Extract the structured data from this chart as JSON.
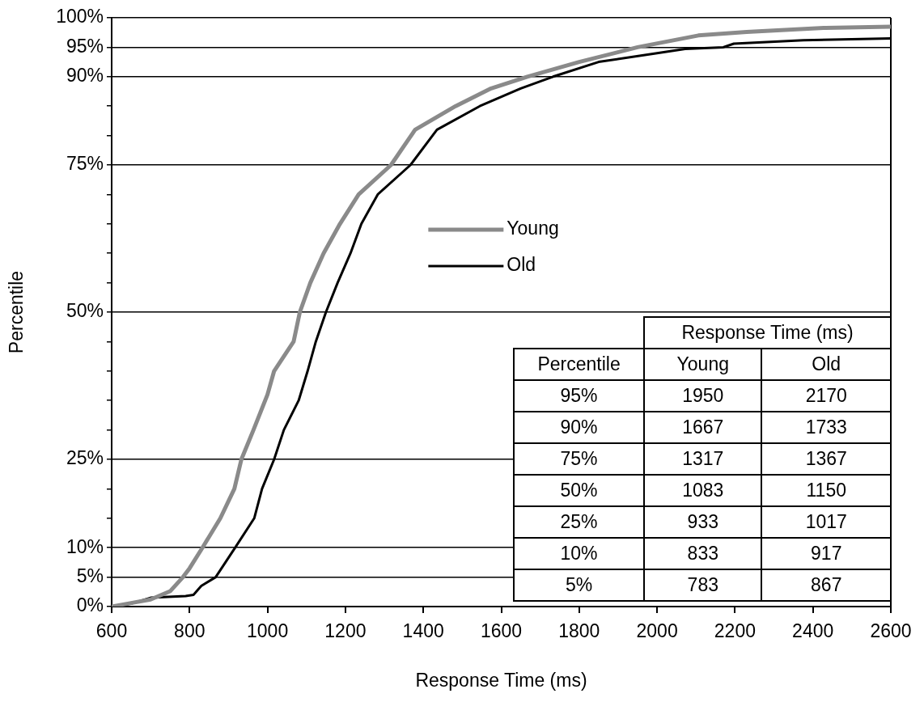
{
  "chart_data": [
    {
      "type": "line",
      "xlabel": "Response Time (ms)",
      "ylabel": "Percentile",
      "xlim": [
        600,
        2600
      ],
      "xticks": [
        600,
        800,
        1000,
        1200,
        1400,
        1600,
        1800,
        2000,
        2200,
        2400,
        2600
      ],
      "ylim": [
        0,
        100
      ],
      "yticks": [
        {
          "value": 0,
          "label": "0%"
        },
        {
          "value": 5,
          "label": "5%"
        },
        {
          "value": 10,
          "label": "10%"
        },
        {
          "value": 15,
          "label": null
        },
        {
          "value": 20,
          "label": null
        },
        {
          "value": 25,
          "label": "25%"
        },
        {
          "value": 30,
          "label": null
        },
        {
          "value": 35,
          "label": null
        },
        {
          "value": 40,
          "label": null
        },
        {
          "value": 45,
          "label": null
        },
        {
          "value": 50,
          "label": "50%"
        },
        {
          "value": 55,
          "label": null
        },
        {
          "value": 60,
          "label": null
        },
        {
          "value": 65,
          "label": null
        },
        {
          "value": 70,
          "label": null
        },
        {
          "value": 75,
          "label": "75%"
        },
        {
          "value": 80,
          "label": null
        },
        {
          "value": 85,
          "label": null
        },
        {
          "value": 90,
          "label": "90%"
        },
        {
          "value": 95,
          "label": "95%"
        },
        {
          "value": 100,
          "label": "100%"
        }
      ],
      "grid": "y",
      "legend": "center",
      "marker": "none",
      "line_style": "solid",
      "series": [
        {
          "name": "Young",
          "color": "#8a8a8a",
          "x": [
            600,
            650,
            700,
            750,
            783,
            800,
            833,
            879,
            915,
            933,
            964,
            1000,
            1017,
            1067,
            1083,
            1110,
            1144,
            1186,
            1234,
            1317,
            1379,
            1483,
            1574,
            1667,
            1800,
            1950,
            2106,
            2230,
            2432,
            2600
          ],
          "values": [
            0,
            0.6,
            1.2,
            2.6,
            5,
            6.5,
            10,
            15,
            20,
            25,
            30,
            36,
            40,
            45,
            50,
            55,
            60,
            65,
            70,
            75,
            81,
            85,
            88,
            90,
            92.5,
            95,
            97,
            97.6,
            98.3,
            98.5
          ]
        },
        {
          "name": "Old",
          "color": "#000000",
          "x": [
            600,
            650,
            700,
            790,
            810,
            830,
            867,
            917,
            966,
            986,
            1017,
            1042,
            1080,
            1103,
            1124,
            1150,
            1180,
            1213,
            1241,
            1283,
            1367,
            1435,
            1545,
            1650,
            1733,
            1850,
            2000,
            2072,
            2170,
            2197,
            2376,
            2600
          ],
          "values": [
            0,
            0.5,
            1.5,
            1.8,
            2,
            3.5,
            5,
            10,
            15,
            20,
            25,
            30,
            35,
            40,
            45,
            50,
            55,
            60,
            65,
            70,
            75,
            81,
            85,
            88,
            90,
            92.5,
            94,
            94.7,
            95,
            95.6,
            96.2,
            96.5
          ]
        }
      ]
    },
    {
      "type": "other",
      "title": "Response Time (ms)",
      "ylabel": "Percentile",
      "categories": [
        "95%",
        "90%",
        "75%",
        "50%",
        "25%",
        "10%",
        "5%"
      ],
      "data_labels": true,
      "series": [
        {
          "name": "Young",
          "values": [
            1950,
            1667,
            1317,
            1083,
            933,
            833,
            783
          ]
        },
        {
          "name": "Old",
          "values": [
            2170,
            1733,
            1367,
            1150,
            1017,
            917,
            867
          ]
        }
      ]
    }
  ]
}
